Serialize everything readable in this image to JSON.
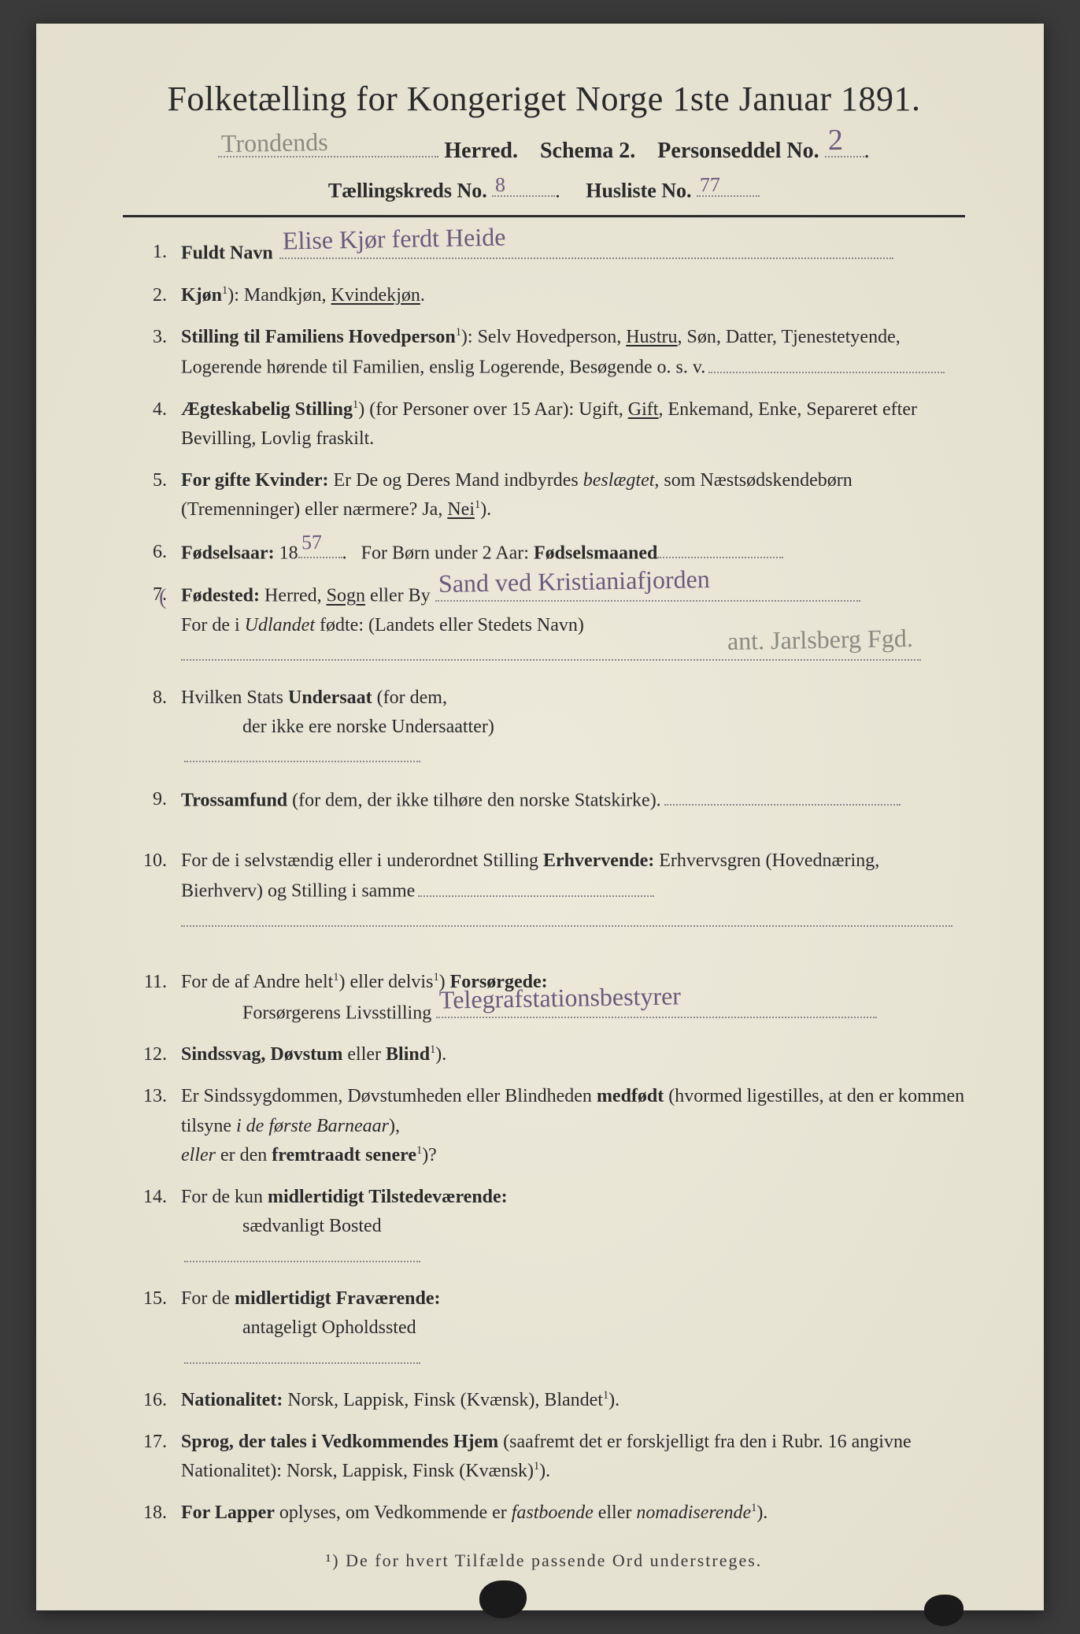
{
  "colors": {
    "paper_bg": "#e8e4d4",
    "page_bg": "#3a3a3a",
    "print_ink": "#2a2a2a",
    "handwriting": "#6a5a7a",
    "handwriting_gray": "#8a8a80",
    "dot_rule": "#888888"
  },
  "title": "Folketælling for Kongeriget Norge 1ste Januar 1891.",
  "line2": {
    "herred_hw": "Trondends",
    "herred_label": "Herred.",
    "schema": "Schema 2.",
    "person_label": "Personseddel No.",
    "person_no_hw": "2"
  },
  "line3": {
    "kreds_label": "Tællingskreds No.",
    "kreds_hw": "8",
    "husliste_label": "Husliste No.",
    "husliste_hw": "77"
  },
  "items": [
    {
      "n": "1.",
      "label": "Fuldt Navn",
      "hw": "Elise Kjør    ferdt   Heide"
    },
    {
      "n": "2.",
      "html": "<span class='b'>Kjøn</span><span class='sup'>1</span>): Mandkjøn, <span class='u'>Kvindekjøn</span>."
    },
    {
      "n": "3.",
      "html": "<span class='b'>Stilling til Familiens Hovedperson</span><span class='sup'>1</span>): Selv Hovedperson, <span class='u'>Hustru</span>, Søn, Datter, Tjenestetyende, Logerende hørende til Familien, enslig Logerende, Besøgende o. s. v.",
      "trail_dots": true
    },
    {
      "n": "4.",
      "html": "<span class='b'>Ægteskabelig Stilling</span><span class='sup'>1</span>) (for Personer over 15 Aar): Ugift, <span class='u'>Gift</span>, Enkemand, Enke, Separeret efter Bevilling, Lovlig fraskilt."
    },
    {
      "n": "5.",
      "html": "<span class='b'>For gifte Kvinder:</span> Er De og Deres Mand indbyrdes <span class='i'>beslægtet</span>, som Næstsødskendebørn (Tremenninger) eller nærmere?  Ja, <span class='u'>Nei</span><span class='sup'>1</span>)."
    },
    {
      "n": "6.",
      "html": "<span class='b'>Fødselsaar:</span> 18<span class='dotfill' style='min-width:56px'><span class='hw hw-s'>57</span></span>.&nbsp;&nbsp; For Børn under 2 Aar: <span class='b'>Fødselsmaaned</span><span class='dotfill' style='min-width:160px'></span>"
    },
    {
      "n": "7.",
      "curly": true,
      "html": "<span class='b'>Fødested:</span> Herred, <span class='u'>Sogn</span> eller By <span class='dotfill' style='min-width:540px'><span class='hw'>Sand ved Kristianiafjorden</span></span><br>For de i <span class='i'>Udlandet</span> fødte: (Landets eller Stedets Navn)<br><span class='dotfill' style='min-width:940px'><span class='hw hw-gray hw-over' style='right:10px; bottom:-2px; left:auto;'>ant. Jarlsberg Fgd.</span></span>"
    },
    {
      "n": "8.",
      "html": "Hvilken Stats <span class='b'>Undersaat</span> (for dem,<br><span class='indent'>der ikke ere norske Undersaatter)</span>",
      "trail_dots": true
    },
    {
      "n": "9.",
      "html": "<span class='b'>Trossamfund</span> (for dem, der ikke tilhøre den norske Statskirke).",
      "trail_dots": true,
      "gap_after": true
    },
    {
      "n": "10.",
      "html": "For de i selvstændig eller i underordnet Stilling <span class='b'>Erhvervende:</span> Erhvervsgren (Hovednæring, Bierhverv) og Stilling i samme",
      "trail_dots": true,
      "second_dots": true,
      "gap_after": true
    },
    {
      "n": "11.",
      "html": "For de af Andre helt<span class='sup'>1</span>) eller delvis<span class='sup'>1</span>) <span class='b'>Forsørgede:</span><br><span class='indent'>Forsørgerens Livsstilling <span class='dotfill' style='min-width:560px'><span class='hw'>Telegrafstationsbestyrer</span></span></span>"
    },
    {
      "n": "12.",
      "html": "<span class='b'>Sindssvag, Døvstum</span> eller <span class='b'>Blind</span><span class='sup'>1</span>)."
    },
    {
      "n": "13.",
      "html": "Er Sindssygdommen, Døvstumheden eller Blindheden <span class='b'>medfødt</span> (hvormed ligestilles, at den er kommen tilsyne <span class='i'>i de første Barneaar</span>),<br><span class='i'>eller</span> er den <span class='b'>fremtraadt senere</span><span class='sup'>1</span>)?"
    },
    {
      "n": "14.",
      "html": "For de kun <span class='b'>midlertidigt Tilstedeværende:</span><br><span class='indent'>sædvanligt Bosted</span>",
      "trail_dots": true
    },
    {
      "n": "15.",
      "html": "For de <span class='b'>midlertidigt Fraværende:</span><br><span class='indent'>antageligt Opholdssted</span>",
      "trail_dots": true
    },
    {
      "n": "16.",
      "html": "<span class='b'>Nationalitet:</span> Norsk, Lappisk, Finsk (Kvænsk), Blandet<span class='sup'>1</span>)."
    },
    {
      "n": "17.",
      "html": "<span class='b'>Sprog, der tales i Vedkommendes Hjem</span> (saafremt det er forskjelligt fra den i Rubr. 16 angivne Nationalitet): Norsk, Lappisk, Finsk (Kvænsk)<span class='sup'>1</span>)."
    },
    {
      "n": "18.",
      "html": "<span class='b'>For Lapper</span> oplyses, om Vedkommende er <span class='i'>fastboende</span> eller <span class='i'>nomadiserende</span><span class='sup'>1</span>)."
    }
  ],
  "footnote": "¹) De for hvert Tilfælde passende Ord understreges."
}
